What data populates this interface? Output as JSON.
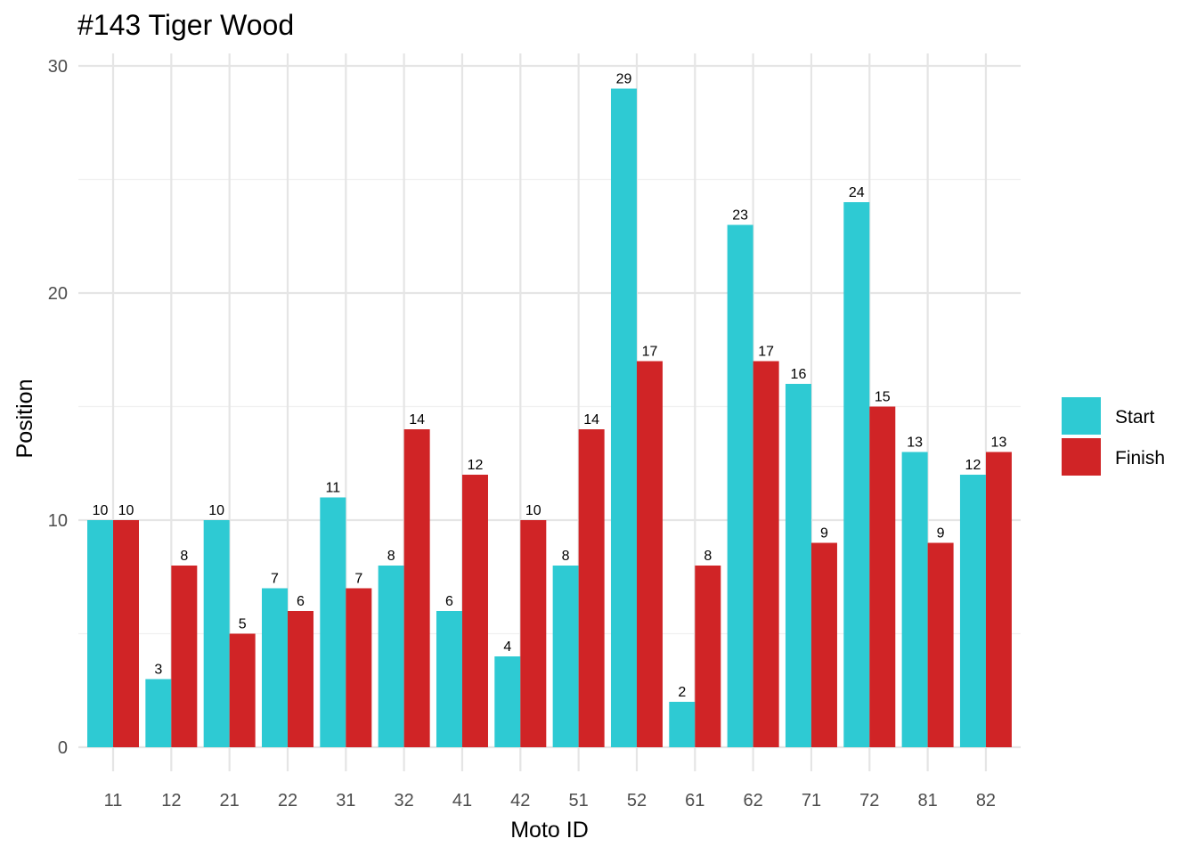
{
  "chart_data": {
    "type": "bar",
    "title": "#143 Tiger Wood",
    "xlabel": "Moto ID",
    "ylabel": "Position",
    "categories": [
      "11",
      "12",
      "21",
      "22",
      "31",
      "32",
      "41",
      "42",
      "51",
      "52",
      "61",
      "62",
      "71",
      "72",
      "81",
      "82"
    ],
    "series": [
      {
        "name": "Start",
        "color": "#2ecad3",
        "values": [
          10,
          3,
          10,
          7,
          11,
          8,
          6,
          4,
          8,
          29,
          2,
          23,
          16,
          24,
          13,
          12
        ]
      },
      {
        "name": "Finish",
        "color": "#d02426",
        "values": [
          10,
          8,
          5,
          6,
          7,
          14,
          12,
          10,
          14,
          17,
          8,
          17,
          9,
          15,
          9,
          13
        ]
      }
    ],
    "ylim": [
      0,
      30
    ],
    "yticks": [
      0,
      10,
      20,
      30
    ],
    "grid": true,
    "legend_position": "right"
  }
}
